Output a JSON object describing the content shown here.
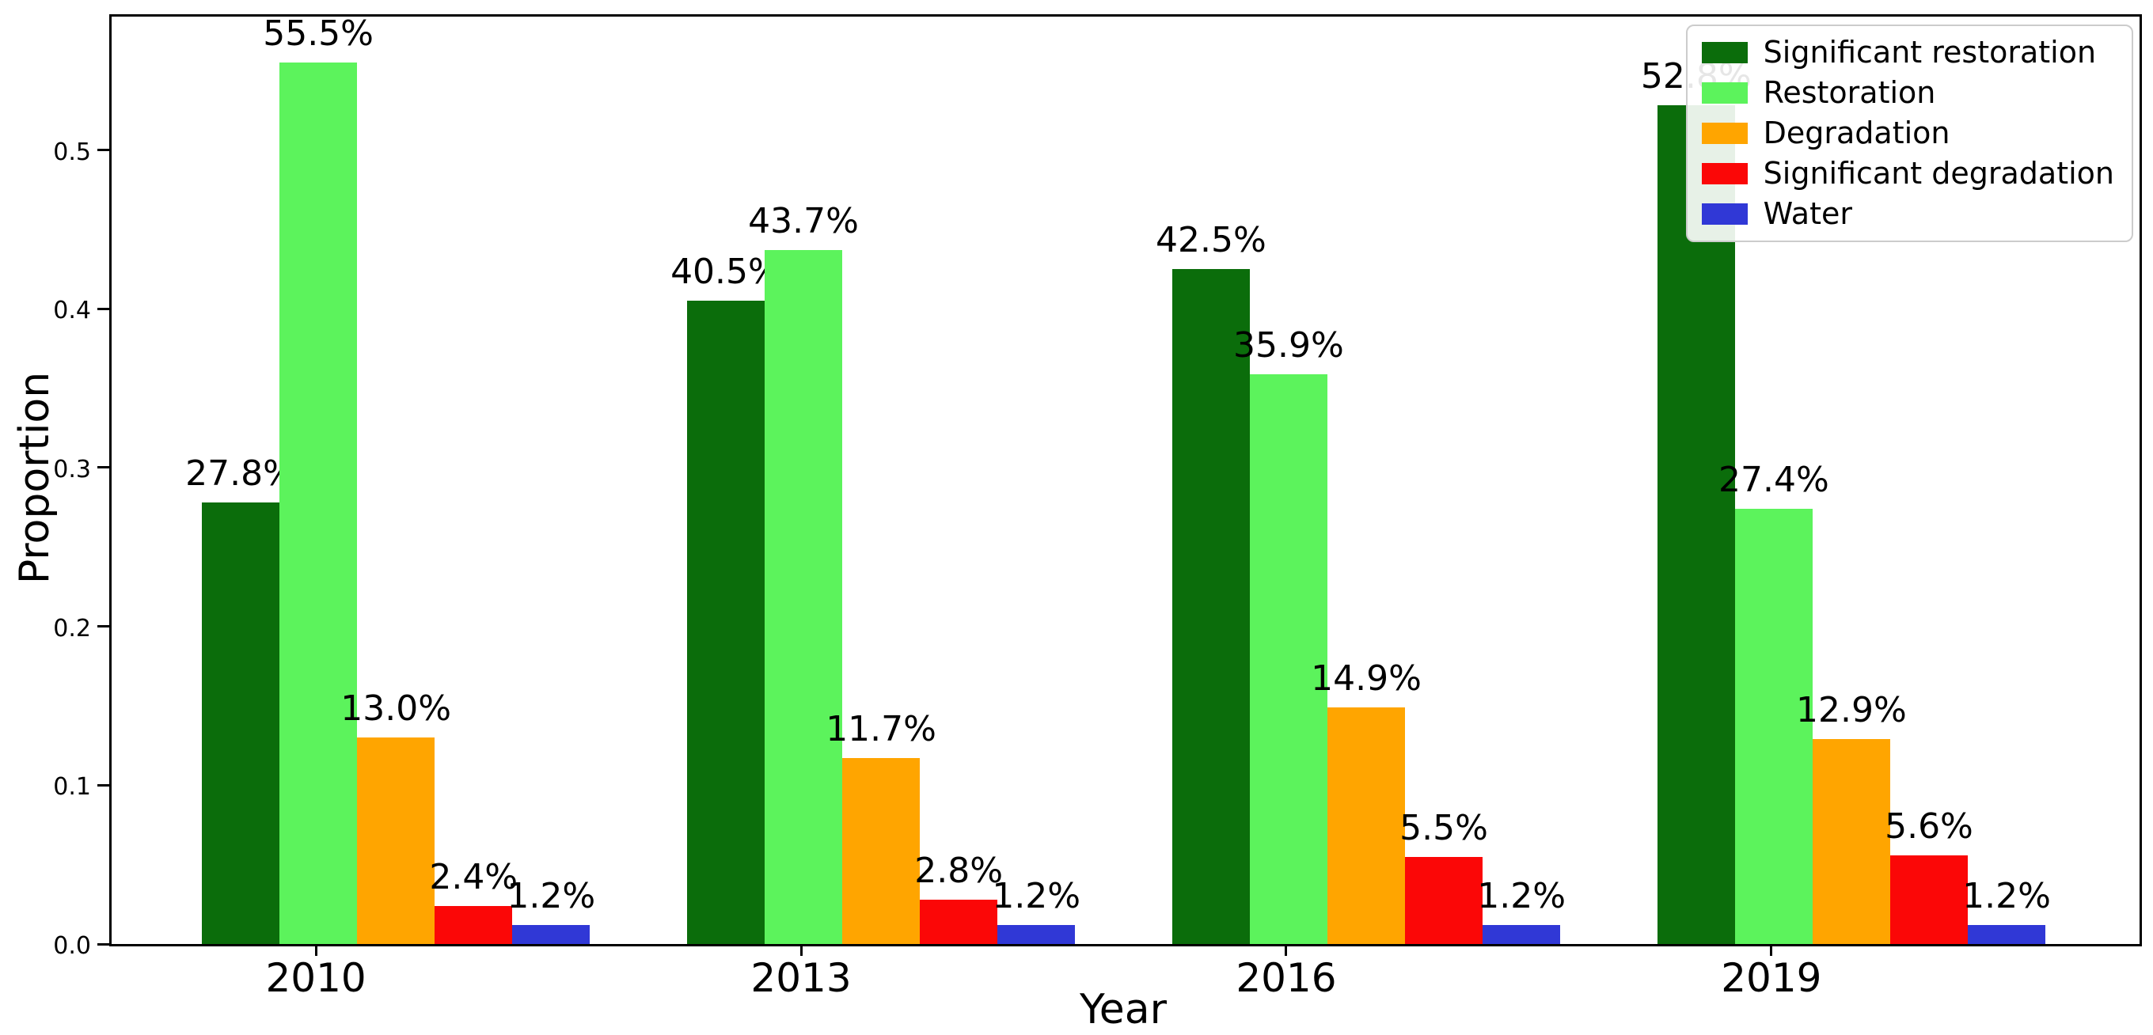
{
  "chart_data": {
    "type": "bar",
    "categories": [
      "2010",
      "2013",
      "2016",
      "2019"
    ],
    "series": [
      {
        "name": "Significant restoration",
        "color": "#0b6d0b",
        "values": [
          0.278,
          0.405,
          0.425,
          0.528
        ],
        "labels": [
          "27.8%",
          "40.5%",
          "42.5%",
          "52.8%"
        ]
      },
      {
        "name": "Restoration",
        "color": "#5cf35c",
        "values": [
          0.555,
          0.437,
          0.359,
          0.274
        ],
        "labels": [
          "55.5%",
          "43.7%",
          "35.9%",
          "27.4%"
        ]
      },
      {
        "name": "Degradation",
        "color": "#ffa500",
        "values": [
          0.13,
          0.117,
          0.149,
          0.129
        ],
        "labels": [
          "13.0%",
          "11.7%",
          "14.9%",
          "12.9%"
        ]
      },
      {
        "name": "Significant degradation",
        "color": "#fb0707",
        "values": [
          0.024,
          0.028,
          0.055,
          0.056
        ],
        "labels": [
          "2.4%",
          "2.8%",
          "5.5%",
          "5.6%"
        ]
      },
      {
        "name": "Water",
        "color": "#3038d6",
        "values": [
          0.012,
          0.012,
          0.012,
          0.012
        ],
        "labels": [
          "1.2%",
          "1.2%",
          "1.2%",
          "1.2%"
        ]
      }
    ],
    "title": "",
    "xlabel": "Year",
    "ylabel": "Proportion",
    "ylim": [
      0,
      0.584
    ],
    "xlim": [
      -0.426,
      3.754
    ],
    "bar_width": 0.16,
    "bar_offsets": [
      -0.16,
      0,
      0.16,
      0.32,
      0.48
    ],
    "yticks": [
      "0.0",
      "0.1",
      "0.2",
      "0.3",
      "0.4",
      "0.5"
    ],
    "ytick_values": [
      0.0,
      0.1,
      0.2,
      0.3,
      0.4,
      0.5
    ],
    "grid": false,
    "legend_position": "upper right"
  }
}
